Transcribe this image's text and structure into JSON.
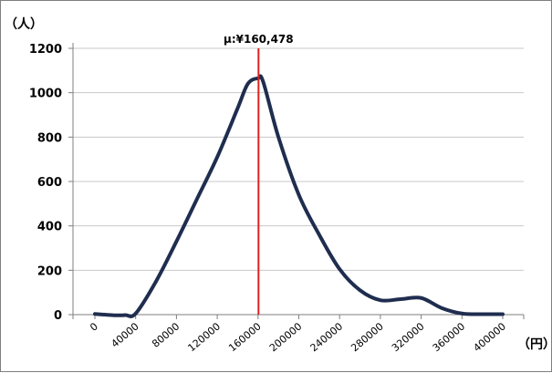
{
  "chart_data": {
    "type": "line",
    "ylabel": "（人）",
    "xlabel": "（円）",
    "xlim": [
      0,
      400000
    ],
    "ylim": [
      0,
      1200
    ],
    "y_ticks": [
      "0",
      "200",
      "400",
      "600",
      "800",
      "1000",
      "1200"
    ],
    "x_ticks": [
      "0",
      "40000",
      "80000",
      "120000",
      "160000",
      "200000",
      "240000",
      "280000",
      "320000",
      "360000",
      "400000"
    ],
    "grid": "horizontal",
    "legend": "none",
    "annotation": {
      "text": "μ:¥160,478",
      "x": 160478
    },
    "series": [
      {
        "line_color": "#1f2d4f",
        "points": [
          [
            0,
            3
          ],
          [
            20000,
            -3
          ],
          [
            30000,
            -2
          ],
          [
            40000,
            5
          ],
          [
            60000,
            150
          ],
          [
            80000,
            330
          ],
          [
            100000,
            520
          ],
          [
            120000,
            710
          ],
          [
            140000,
            930
          ],
          [
            150000,
            1040
          ],
          [
            160000,
            1065
          ],
          [
            165000,
            1050
          ],
          [
            180000,
            800
          ],
          [
            200000,
            540
          ],
          [
            220000,
            360
          ],
          [
            240000,
            205
          ],
          [
            260000,
            110
          ],
          [
            280000,
            65
          ],
          [
            300000,
            70
          ],
          [
            320000,
            75
          ],
          [
            340000,
            30
          ],
          [
            360000,
            5
          ],
          [
            380000,
            2
          ],
          [
            400000,
            2
          ]
        ]
      }
    ],
    "marker_line_color": "#e02020",
    "grid_color": "#c8c8c8"
  }
}
